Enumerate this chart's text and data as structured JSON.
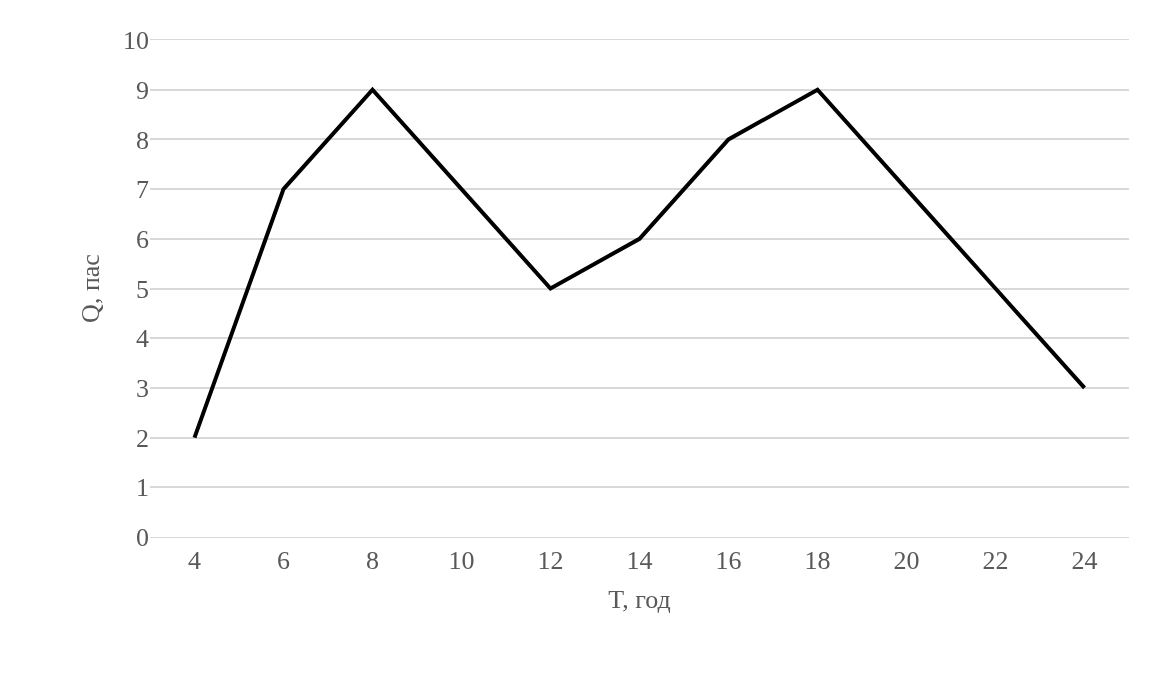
{
  "chart_data": {
    "type": "line",
    "xlabel": "T, год",
    "ylabel": "Q, пас",
    "categories": [
      "4",
      "6",
      "8",
      "10",
      "12",
      "14",
      "16",
      "18",
      "20",
      "22",
      "24"
    ],
    "series": [
      {
        "color": "#000000",
        "values": [
          2,
          7,
          9,
          7,
          5,
          6,
          8,
          9,
          7,
          5,
          3
        ]
      }
    ],
    "ylim": [
      0,
      10
    ],
    "yticks": [
      0,
      1,
      2,
      3,
      4,
      5,
      6,
      7,
      8,
      9,
      10
    ],
    "grid": "y",
    "marker": "none",
    "line_style": "solid"
  }
}
